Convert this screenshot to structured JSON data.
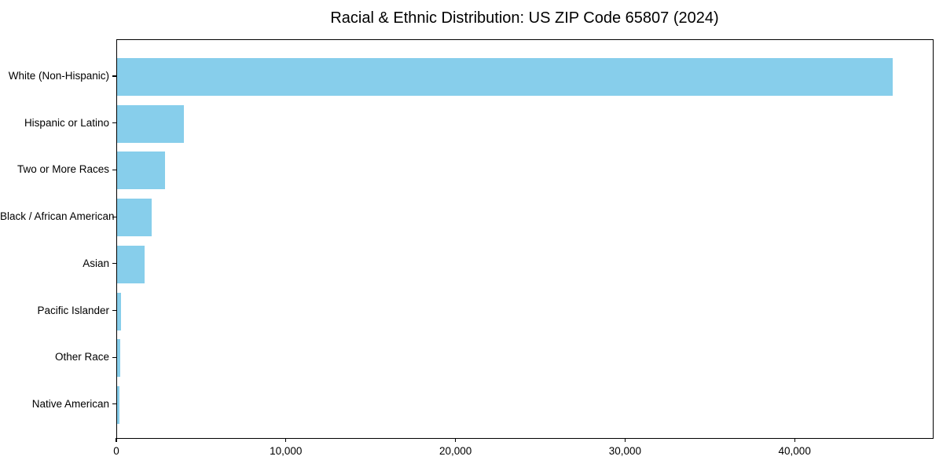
{
  "page": {
    "background_color": "#ffffff"
  },
  "chart_data": {
    "type": "bar",
    "orientation": "horizontal",
    "title": "Racial & Ethnic Distribution: US ZIP Code 65807 (2024)",
    "xlabel": "",
    "ylabel": "",
    "categories": [
      "White (Non-Hispanic)",
      "Hispanic or Latino",
      "Two or More Races",
      "Black / African American",
      "Asian",
      "Pacific Islander",
      "Other Race",
      "Native American"
    ],
    "values": [
      45740,
      3920,
      2840,
      2040,
      1630,
      230,
      175,
      120
    ],
    "xlim": [
      0,
      48100
    ],
    "x_ticks": [
      {
        "value": 0,
        "label": "0"
      },
      {
        "value": 10000,
        "label": "10,000"
      },
      {
        "value": 20000,
        "label": "20,000"
      },
      {
        "value": 30000,
        "label": "30,000"
      },
      {
        "value": 40000,
        "label": "40,000"
      }
    ],
    "grid": false,
    "legend": null,
    "bar_color": "#87CEEB",
    "axis_color": "#000000",
    "text_color": "#000000"
  }
}
